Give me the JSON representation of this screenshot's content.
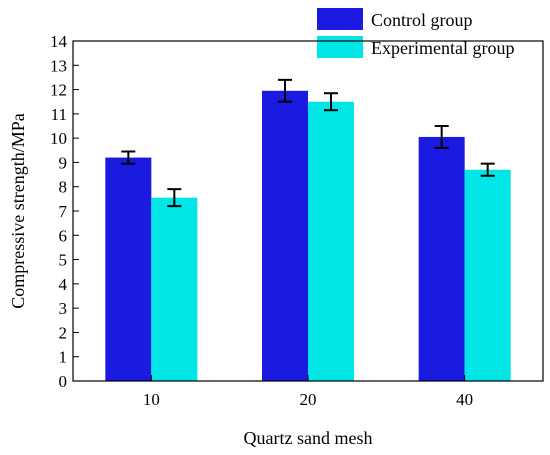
{
  "chart_data": {
    "type": "bar",
    "title": "",
    "xlabel": "Quartz sand mesh",
    "ylabel": "Compressive strength/MPa",
    "categories": [
      "10",
      "20",
      "40"
    ],
    "ylim": [
      0,
      14
    ],
    "yticks": [
      0,
      1,
      2,
      3,
      4,
      5,
      6,
      7,
      8,
      9,
      10,
      11,
      12,
      13,
      14
    ],
    "grid": false,
    "legend_position": "top-right",
    "series": [
      {
        "name": "Control group",
        "color": "#1a1ae0",
        "values": [
          9.2,
          11.95,
          10.05
        ],
        "errors": [
          0.25,
          0.45,
          0.45
        ]
      },
      {
        "name": "Experimental group",
        "color": "#00e6e6",
        "values": [
          7.55,
          11.5,
          8.7
        ],
        "errors": [
          0.35,
          0.35,
          0.25
        ]
      }
    ]
  }
}
